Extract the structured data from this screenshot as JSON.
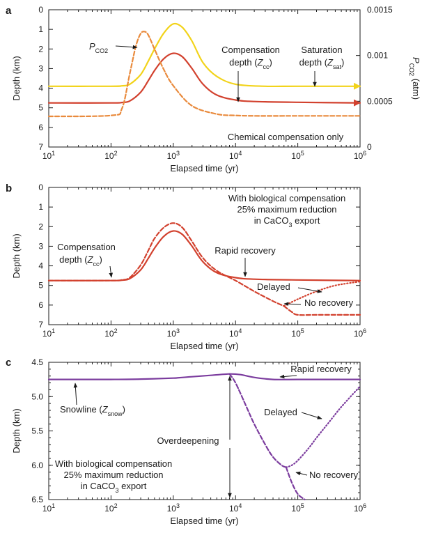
{
  "colors": {
    "yellow": "#f2d31a",
    "red": "#d2412e",
    "orange": "#e98a3c",
    "purple": "#7b3c9e",
    "axis": "#1a1a1a"
  },
  "chart_data": [
    {
      "type": "line",
      "panel_label": "a",
      "xlabel": "Elapsed time (yr)",
      "ylabel": "Depth (km)",
      "ylabel_right": {
        "main": "P",
        "sub": "CO2",
        "rest": " (atm)"
      },
      "xscale": "log",
      "xlim": [
        10,
        1000000
      ],
      "ylim": [
        0,
        7
      ],
      "y_inverted": true,
      "y2lim": [
        0,
        0.0015
      ],
      "xticks": [
        {
          "value": 10,
          "base": "10",
          "exp": "1"
        },
        {
          "value": 100,
          "base": "10",
          "exp": "2"
        },
        {
          "value": 1000,
          "base": "10",
          "exp": "3"
        },
        {
          "value": 10000,
          "base": "10",
          "exp": "4"
        },
        {
          "value": 100000,
          "base": "10",
          "exp": "5"
        },
        {
          "value": 1000000,
          "base": "10",
          "exp": "6"
        }
      ],
      "yticks": [
        {
          "value": 0,
          "label": "0"
        },
        {
          "value": 1,
          "label": "1"
        },
        {
          "value": 2,
          "label": "2"
        },
        {
          "value": 3,
          "label": "3"
        },
        {
          "value": 4,
          "label": "4"
        },
        {
          "value": 5,
          "label": "5"
        },
        {
          "value": 6,
          "label": "6"
        },
        {
          "value": 7,
          "label": "7"
        }
      ],
      "y2ticks": [
        {
          "value": 0,
          "label": "0"
        },
        {
          "value": 0.0005,
          "label": "0.0005"
        },
        {
          "value": 0.001,
          "label": "0.001"
        },
        {
          "value": 0.0015,
          "label": "0.0015"
        }
      ],
      "series": [
        {
          "color": "yellow",
          "style": "solid",
          "axis": "left",
          "arrow": true,
          "x": [
            10,
            100,
            150,
            200,
            300,
            400,
            500,
            700,
            1000,
            1400,
            2000,
            3000,
            5000,
            10000,
            30000,
            100000,
            1000000
          ],
          "y": [
            3.9,
            3.9,
            3.88,
            3.8,
            3.3,
            2.6,
            2.0,
            1.2,
            0.72,
            0.9,
            1.6,
            2.7,
            3.4,
            3.8,
            3.9,
            3.9,
            3.9
          ]
        },
        {
          "color": "red",
          "style": "solid",
          "axis": "left",
          "arrow": true,
          "x": [
            10,
            100,
            150,
            200,
            300,
            400,
            500,
            700,
            1000,
            1400,
            2000,
            3000,
            5000,
            10000,
            20000,
            100000,
            1000000
          ],
          "y": [
            4.75,
            4.75,
            4.73,
            4.65,
            4.2,
            3.6,
            3.1,
            2.5,
            2.22,
            2.4,
            3.0,
            3.8,
            4.35,
            4.6,
            4.68,
            4.72,
            4.75
          ]
        },
        {
          "color": "orange",
          "style": "dashed",
          "axis": "right",
          "x": [
            10,
            100,
            150,
            200,
            250,
            300,
            350,
            400,
            500,
            700,
            1000,
            2000,
            5000,
            10000,
            20000,
            100000,
            1000000
          ],
          "y": [
            0.000335,
            0.000345,
            0.00042,
            0.0008,
            0.0011,
            0.00124,
            0.00126,
            0.00122,
            0.00107,
            0.00085,
            0.00067,
            0.00045,
            0.00036,
            0.000345,
            0.00034,
            0.00034,
            0.00034
          ]
        }
      ],
      "annotations": [
        {
          "id": "pco2",
          "main": "P",
          "sub": "CO2"
        },
        {
          "id": "comp1",
          "text": "Compensation"
        },
        {
          "id": "comp2",
          "main": "depth (",
          "italic": "Z",
          "sub": "cc",
          "rest": ")"
        },
        {
          "id": "sat1",
          "text": "Saturation"
        },
        {
          "id": "sat2",
          "main": "depth (",
          "italic": "Z",
          "sub": "sat",
          "rest": ")"
        },
        {
          "id": "chem",
          "text": "Chemical compensation only"
        }
      ]
    },
    {
      "type": "line",
      "panel_label": "b",
      "xlabel": "Elapsed time (yr)",
      "ylabel": "Depth (km)",
      "xscale": "log",
      "xlim": [
        10,
        1000000
      ],
      "ylim": [
        0,
        7
      ],
      "y_inverted": true,
      "xticks": [
        {
          "value": 10,
          "base": "10",
          "exp": "1"
        },
        {
          "value": 100,
          "base": "10",
          "exp": "2"
        },
        {
          "value": 1000,
          "base": "10",
          "exp": "3"
        },
        {
          "value": 10000,
          "base": "10",
          "exp": "4"
        },
        {
          "value": 100000,
          "base": "10",
          "exp": "5"
        },
        {
          "value": 1000000,
          "base": "10",
          "exp": "6"
        }
      ],
      "yticks": [
        {
          "value": 0,
          "label": "0"
        },
        {
          "value": 1,
          "label": "1"
        },
        {
          "value": 2,
          "label": "2"
        },
        {
          "value": 3,
          "label": "3"
        },
        {
          "value": 4,
          "label": "4"
        },
        {
          "value": 5,
          "label": "5"
        },
        {
          "value": 6,
          "label": "6"
        },
        {
          "value": 7,
          "label": "7"
        }
      ],
      "series": [
        {
          "id": "rapid",
          "color": "red",
          "style": "solid",
          "x": [
            10,
            100,
            150,
            200,
            300,
            400,
            500,
            700,
            1000,
            1400,
            2000,
            3000,
            5000,
            10000,
            20000,
            100000,
            1000000
          ],
          "y": [
            4.75,
            4.75,
            4.73,
            4.65,
            4.2,
            3.6,
            3.1,
            2.5,
            2.22,
            2.4,
            3.0,
            3.8,
            4.35,
            4.6,
            4.68,
            4.72,
            4.75
          ]
        },
        {
          "id": "bio",
          "color": "red",
          "style": "dashed",
          "x": [
            10,
            100,
            150,
            200,
            300,
            400,
            500,
            700,
            1000,
            1400,
            2000,
            3000,
            5000,
            10000,
            20000,
            40000,
            60000
          ],
          "y": [
            4.75,
            4.75,
            4.72,
            4.6,
            3.95,
            3.2,
            2.6,
            2.05,
            1.82,
            2.05,
            2.75,
            3.6,
            4.25,
            4.75,
            5.3,
            5.8,
            6.05
          ]
        },
        {
          "id": "delayed",
          "color": "red",
          "style": "dotted",
          "x": [
            60000,
            100000,
            200000,
            400000,
            1000000
          ],
          "y": [
            6.05,
            5.7,
            5.3,
            5.0,
            4.8
          ]
        },
        {
          "id": "norecovery",
          "color": "red",
          "style": "dashed",
          "x": [
            60000,
            80000,
            100000,
            200000,
            1000000
          ],
          "y": [
            6.05,
            6.35,
            6.5,
            6.5,
            6.5
          ]
        }
      ],
      "annotations": [
        {
          "id": "bio1",
          "text": "With biological compensation"
        },
        {
          "id": "bio2",
          "text": "25% maximum reduction"
        },
        {
          "id": "bio3",
          "main": "in CaCO",
          "sub": "3",
          "rest": " export"
        },
        {
          "id": "comp1",
          "text": "Compensation"
        },
        {
          "id": "comp2",
          "main": "depth (",
          "italic": "Z",
          "sub": "cc",
          "rest": ")"
        },
        {
          "id": "rapid",
          "text": "Rapid recovery"
        },
        {
          "id": "delayed",
          "text": "Delayed"
        },
        {
          "id": "norec",
          "text": "No recovery"
        }
      ]
    },
    {
      "type": "line",
      "panel_label": "c",
      "xlabel": "Elapsed time (yr)",
      "ylabel": "Depth (km)",
      "xscale": "log",
      "xlim": [
        10,
        1000000
      ],
      "ylim": [
        4.5,
        6.5
      ],
      "y_inverted": true,
      "xticks": [
        {
          "value": 10,
          "base": "10",
          "exp": "1"
        },
        {
          "value": 100,
          "base": "10",
          "exp": "2"
        },
        {
          "value": 1000,
          "base": "10",
          "exp": "3"
        },
        {
          "value": 10000,
          "base": "10",
          "exp": "4"
        },
        {
          "value": 100000,
          "base": "10",
          "exp": "5"
        },
        {
          "value": 1000000,
          "base": "10",
          "exp": "6"
        }
      ],
      "yticks": [
        {
          "value": 4.5,
          "label": "4.5"
        },
        {
          "value": 5.0,
          "label": "5.0"
        },
        {
          "value": 5.5,
          "label": "5.5"
        },
        {
          "value": 6.0,
          "label": "6.0"
        },
        {
          "value": 6.5,
          "label": "6.5"
        }
      ],
      "series": [
        {
          "id": "rapid",
          "color": "purple",
          "style": "solid",
          "x": [
            10,
            100,
            300,
            1000,
            2000,
            4000,
            8000,
            12000,
            20000,
            40000,
            100000,
            1000000
          ],
          "y": [
            4.75,
            4.75,
            4.745,
            4.73,
            4.71,
            4.69,
            4.67,
            4.68,
            4.72,
            4.75,
            4.75,
            4.75
          ]
        },
        {
          "id": "bio",
          "color": "purple",
          "style": "dashed",
          "x": [
            8000,
            10000,
            15000,
            20000,
            30000,
            40000,
            55000,
            65000
          ],
          "y": [
            4.67,
            4.8,
            5.15,
            5.4,
            5.7,
            5.88,
            6.0,
            6.03
          ]
        },
        {
          "id": "delayed",
          "color": "purple",
          "style": "dotted",
          "x": [
            65000,
            80000,
            100000,
            150000,
            200000,
            300000,
            500000,
            1000000
          ],
          "y": [
            6.03,
            6.0,
            5.93,
            5.75,
            5.6,
            5.4,
            5.15,
            4.85
          ]
        },
        {
          "id": "norecovery",
          "color": "purple",
          "style": "dashed",
          "x": [
            65000,
            80000,
            100000,
            130000
          ],
          "y": [
            6.03,
            6.25,
            6.42,
            6.5
          ]
        }
      ],
      "annotations": [
        {
          "id": "rapid",
          "text": "Rapid recovery"
        },
        {
          "id": "snow",
          "main": "Snowline (",
          "italic": "Z",
          "sub": "snow",
          "rest": ")"
        },
        {
          "id": "delayed",
          "text": "Delayed"
        },
        {
          "id": "overdeep",
          "text": "Overdeepening"
        },
        {
          "id": "bio1",
          "text": "With biological compensation"
        },
        {
          "id": "bio2",
          "text": "25% maximum reduction"
        },
        {
          "id": "bio3",
          "main": "in CaCO",
          "sub": "3",
          "rest": " export"
        },
        {
          "id": "norec",
          "text": "No recovery"
        }
      ]
    }
  ]
}
